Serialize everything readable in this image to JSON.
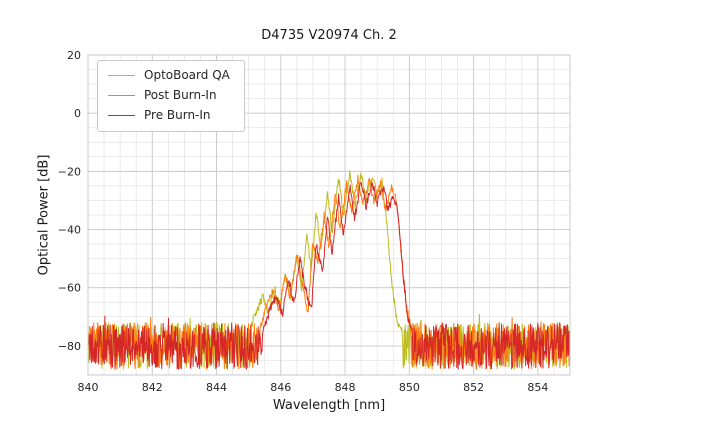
{
  "colors": {
    "background": "#ffffff",
    "axes_background": "#ffffff",
    "grid_major": "#c9c9c9",
    "grid_minor": "#e2e2e2",
    "spine": "#c9c9c9",
    "text": "#262626",
    "legend_border": "#c9c9c9"
  },
  "chart_data": {
    "type": "line",
    "title": "D4735 V20974 Ch. 2",
    "xlabel": "Wavelength [nm]",
    "ylabel": "Optical Power [dB]",
    "xlim": [
      840,
      855
    ],
    "ylim": [
      -90,
      20
    ],
    "xticks": [
      840,
      842,
      844,
      846,
      848,
      850,
      852,
      854
    ],
    "yticks": [
      20,
      0,
      -20,
      -40,
      -60,
      -80
    ],
    "xtick_labels": [
      "840",
      "842",
      "844",
      "846",
      "848",
      "850",
      "852",
      "854"
    ],
    "ytick_labels": [
      "20",
      "0",
      "−20",
      "−40",
      "−60",
      "−80"
    ],
    "grid": {
      "major_step_x": 2,
      "minor_step_x": 0.5,
      "major_step_y": 20,
      "minor_step_y": 5
    },
    "legend": {
      "position": "upper left"
    },
    "noise_floor": {
      "y_top": -72,
      "y_bottom": -88,
      "description": "dense random noise floor spanning 840-855 nm"
    },
    "sample_step_nm": 0.015,
    "series": [
      {
        "name": "OptoBoard QA",
        "color": "#bcbd22",
        "seed": 11,
        "peak_envelope": [
          [
            845.05,
            -74
          ],
          [
            845.25,
            -68
          ],
          [
            845.45,
            -63
          ],
          [
            845.6,
            -68
          ],
          [
            845.8,
            -60
          ],
          [
            845.95,
            -66
          ],
          [
            846.15,
            -56
          ],
          [
            846.3,
            -63
          ],
          [
            846.5,
            -50
          ],
          [
            846.65,
            -60
          ],
          [
            846.8,
            -42
          ],
          [
            846.95,
            -54
          ],
          [
            847.1,
            -34
          ],
          [
            847.25,
            -47
          ],
          [
            847.45,
            -28
          ],
          [
            847.6,
            -41
          ],
          [
            847.8,
            -22
          ],
          [
            847.95,
            -35
          ],
          [
            848.15,
            -20.5
          ],
          [
            848.3,
            -32
          ],
          [
            848.5,
            -21
          ],
          [
            848.65,
            -30
          ],
          [
            848.85,
            -21.5
          ],
          [
            849.0,
            -29
          ],
          [
            849.15,
            -23
          ],
          [
            849.3,
            -38
          ],
          [
            849.45,
            -58
          ],
          [
            849.6,
            -70
          ],
          [
            849.75,
            -76
          ]
        ]
      },
      {
        "name": "Post Burn-In",
        "color": "#ff7f0e",
        "seed": 22,
        "peak_envelope": [
          [
            845.35,
            -74
          ],
          [
            845.55,
            -67
          ],
          [
            845.75,
            -61
          ],
          [
            845.95,
            -68
          ],
          [
            846.15,
            -55
          ],
          [
            846.3,
            -64
          ],
          [
            846.5,
            -48
          ],
          [
            846.65,
            -58
          ],
          [
            846.85,
            -68
          ],
          [
            847.0,
            -44
          ],
          [
            847.15,
            -52
          ],
          [
            847.35,
            -35
          ],
          [
            847.5,
            -46
          ],
          [
            847.7,
            -28
          ],
          [
            847.85,
            -40
          ],
          [
            848.05,
            -24
          ],
          [
            848.2,
            -34
          ],
          [
            848.4,
            -22.5
          ],
          [
            848.55,
            -31
          ],
          [
            848.75,
            -23
          ],
          [
            848.9,
            -30
          ],
          [
            849.1,
            -24
          ],
          [
            849.25,
            -33
          ],
          [
            849.45,
            -26
          ],
          [
            849.6,
            -30
          ],
          [
            849.75,
            -48
          ],
          [
            849.9,
            -66
          ],
          [
            850.05,
            -74
          ]
        ]
      },
      {
        "name": "Pre Burn-In",
        "color": "#d62728",
        "seed": 33,
        "peak_envelope": [
          [
            845.45,
            -75
          ],
          [
            845.65,
            -68
          ],
          [
            845.85,
            -63
          ],
          [
            846.05,
            -69
          ],
          [
            846.25,
            -57
          ],
          [
            846.4,
            -66
          ],
          [
            846.6,
            -50
          ],
          [
            846.75,
            -60
          ],
          [
            846.95,
            -68
          ],
          [
            847.1,
            -45
          ],
          [
            847.3,
            -55
          ],
          [
            847.45,
            -36
          ],
          [
            847.6,
            -48
          ],
          [
            847.8,
            -29
          ],
          [
            847.95,
            -42
          ],
          [
            848.15,
            -25
          ],
          [
            848.3,
            -36
          ],
          [
            848.5,
            -23
          ],
          [
            848.65,
            -32
          ],
          [
            848.85,
            -24
          ],
          [
            849.0,
            -31
          ],
          [
            849.2,
            -25
          ],
          [
            849.35,
            -34
          ],
          [
            849.5,
            -27
          ],
          [
            849.65,
            -35
          ],
          [
            849.8,
            -55
          ],
          [
            849.95,
            -70
          ],
          [
            850.1,
            -76
          ]
        ]
      }
    ]
  }
}
